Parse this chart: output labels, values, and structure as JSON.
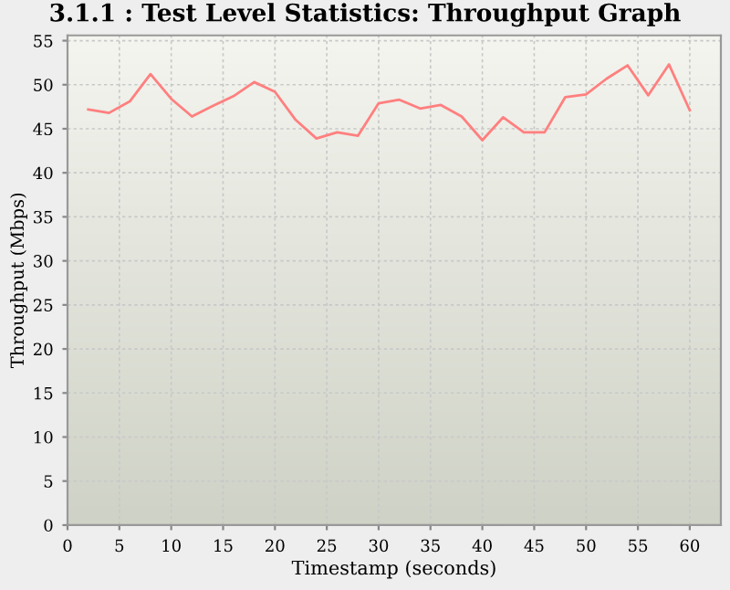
{
  "chart_data": {
    "type": "line",
    "title": "3.1.1 : Test Level Statistics: Throughput Graph",
    "xlabel": "Timestamp (seconds)",
    "ylabel": "Throughput (Mbps)",
    "x": [
      2,
      4,
      6,
      8,
      10,
      12,
      14,
      16,
      18,
      20,
      22,
      24,
      26,
      28,
      30,
      32,
      34,
      36,
      38,
      40,
      42,
      44,
      46,
      48,
      50,
      52,
      54,
      56,
      58,
      60
    ],
    "series": [
      {
        "color": "#ff7f7f",
        "values": [
          47.2,
          46.8,
          48.1,
          51.2,
          48.4,
          46.4,
          47.6,
          48.7,
          50.3,
          49.2,
          46.0,
          43.9,
          44.6,
          44.2,
          47.9,
          48.3,
          47.3,
          47.7,
          46.4,
          43.7,
          46.3,
          44.6,
          44.6,
          48.6,
          48.9,
          50.7,
          52.2,
          48.8,
          52.3,
          47.1
        ]
      }
    ],
    "xlim": [
      0,
      63
    ],
    "ylim": [
      0,
      55.6
    ],
    "xticks": [
      0,
      5,
      10,
      15,
      20,
      25,
      30,
      35,
      40,
      45,
      50,
      55,
      60
    ],
    "yticks": [
      0,
      5,
      10,
      15,
      20,
      25,
      30,
      35,
      40,
      45,
      50,
      55
    ],
    "grid": true,
    "marker": "none",
    "line_style": "solid"
  }
}
